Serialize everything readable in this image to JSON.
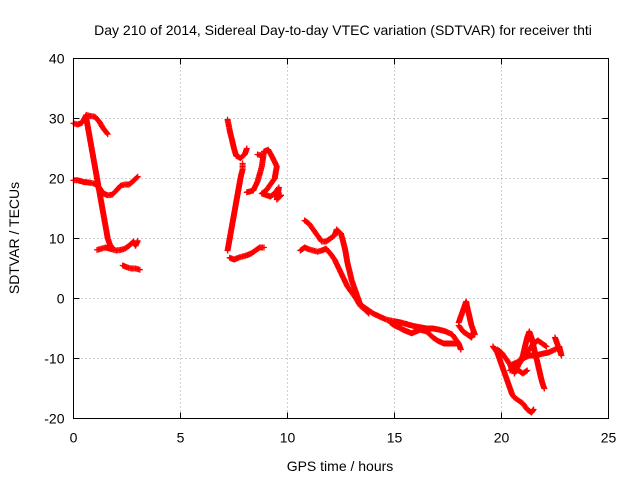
{
  "chart_data": {
    "type": "scatter",
    "title": "Day 210 of 2014, Sidereal Day-to-day VTEC variation (SDTVAR) for receiver thti",
    "xlabel": "GPS time / hours",
    "ylabel": "SDTVAR / TECUs",
    "xlim": [
      0,
      25
    ],
    "ylim": [
      -20,
      40
    ],
    "xticks": [
      "0",
      "5",
      "10",
      "15",
      "20",
      "25"
    ],
    "yticks": [
      "-20",
      "-10",
      "0",
      "10",
      "20",
      "30",
      "40"
    ],
    "grid": true,
    "marker": "+",
    "series_color": "#ff0000",
    "tracks": [
      [
        [
          0.0,
          29.2
        ],
        [
          0.2,
          29.0
        ],
        [
          0.4,
          29.3
        ],
        [
          0.6,
          30.6
        ],
        [
          0.8,
          30.4
        ],
        [
          1.0,
          30.3
        ],
        [
          1.2,
          29.5
        ],
        [
          1.4,
          28.3
        ],
        [
          1.6,
          27.4
        ]
      ],
      [
        [
          0.6,
          30.0
        ],
        [
          0.7,
          28.0
        ],
        [
          0.8,
          26.0
        ],
        [
          0.9,
          24.0
        ],
        [
          1.0,
          22.0
        ],
        [
          1.1,
          20.0
        ],
        [
          1.2,
          18.0
        ],
        [
          1.3,
          16.0
        ],
        [
          1.4,
          14.0
        ],
        [
          1.5,
          12.0
        ],
        [
          1.6,
          10.0
        ],
        [
          1.7,
          9.0
        ],
        [
          1.8,
          8.5
        ]
      ],
      [
        [
          0.0,
          19.7
        ],
        [
          0.2,
          19.7
        ],
        [
          0.5,
          19.4
        ],
        [
          0.8,
          19.3
        ],
        [
          1.0,
          19.1
        ],
        [
          1.2,
          18.5
        ],
        [
          1.4,
          17.5
        ],
        [
          1.6,
          17.2
        ],
        [
          1.8,
          17.3
        ],
        [
          2.0,
          18.0
        ],
        [
          2.2,
          18.8
        ],
        [
          2.4,
          19.0
        ],
        [
          2.6,
          19.0
        ],
        [
          2.8,
          19.6
        ],
        [
          3.0,
          20.3
        ]
      ],
      [
        [
          1.1,
          8.1
        ],
        [
          1.3,
          8.3
        ],
        [
          1.5,
          8.5
        ],
        [
          1.8,
          8.2
        ],
        [
          2.0,
          8.0
        ],
        [
          2.2,
          8.1
        ],
        [
          2.4,
          8.3
        ],
        [
          2.6,
          8.8
        ],
        [
          2.8,
          9.5
        ],
        [
          2.9,
          8.8
        ],
        [
          3.0,
          9.6
        ]
      ],
      [
        [
          2.3,
          5.5
        ],
        [
          2.5,
          5.2
        ],
        [
          2.7,
          5.0
        ],
        [
          2.9,
          5.0
        ],
        [
          3.1,
          4.8
        ]
      ],
      [
        [
          7.2,
          29.8
        ],
        [
          7.3,
          28.0
        ],
        [
          7.4,
          26.5
        ],
        [
          7.5,
          25.0
        ],
        [
          7.6,
          23.8
        ],
        [
          7.8,
          23.4
        ],
        [
          8.0,
          24.0
        ],
        [
          8.1,
          25.0
        ]
      ],
      [
        [
          7.2,
          8.0
        ],
        [
          7.3,
          10.0
        ],
        [
          7.4,
          12.0
        ],
        [
          7.5,
          14.0
        ],
        [
          7.6,
          16.0
        ],
        [
          7.7,
          18.0
        ],
        [
          7.8,
          20.0
        ],
        [
          7.9,
          21.5
        ],
        [
          7.9,
          22.5
        ]
      ],
      [
        [
          7.3,
          6.8
        ],
        [
          7.5,
          6.5
        ],
        [
          7.7,
          6.8
        ],
        [
          7.9,
          7.0
        ],
        [
          8.1,
          7.2
        ],
        [
          8.3,
          7.5
        ],
        [
          8.5,
          8.0
        ],
        [
          8.7,
          8.5
        ],
        [
          8.9,
          8.5
        ]
      ],
      [
        [
          8.1,
          17.7
        ],
        [
          8.4,
          18.0
        ],
        [
          8.6,
          19.5
        ],
        [
          8.8,
          22.0
        ],
        [
          8.9,
          24.5
        ],
        [
          9.1,
          24.8
        ],
        [
          9.3,
          23.5
        ],
        [
          9.5,
          22.0
        ],
        [
          9.4,
          20.0
        ],
        [
          9.2,
          19.0
        ],
        [
          9.0,
          18.0
        ],
        [
          8.8,
          17.5
        ],
        [
          9.2,
          17.0
        ],
        [
          9.4,
          17.5
        ],
        [
          9.6,
          18.5
        ],
        [
          9.5,
          16.5
        ],
        [
          9.7,
          17.2
        ]
      ],
      [
        [
          8.6,
          24.0
        ],
        [
          8.8,
          23.8
        ]
      ],
      [
        [
          10.8,
          13.0
        ],
        [
          11.0,
          12.5
        ],
        [
          11.2,
          11.5
        ],
        [
          11.4,
          10.5
        ],
        [
          11.6,
          9.5
        ],
        [
          11.8,
          9.5
        ],
        [
          12.0,
          10.0
        ],
        [
          12.2,
          10.5
        ],
        [
          12.3,
          11.5
        ],
        [
          12.5,
          10.8
        ],
        [
          12.6,
          9.5
        ],
        [
          12.7,
          8.0
        ],
        [
          12.8,
          6.0
        ],
        [
          12.9,
          4.5
        ],
        [
          13.0,
          3.0
        ],
        [
          13.1,
          2.0
        ],
        [
          13.2,
          1.0
        ],
        [
          13.3,
          0.0
        ],
        [
          13.4,
          -1.0
        ],
        [
          13.6,
          -1.5
        ],
        [
          13.8,
          -2.0
        ],
        [
          14.0,
          -2.5
        ],
        [
          14.3,
          -3.0
        ],
        [
          14.6,
          -3.5
        ],
        [
          15.0,
          -3.8
        ],
        [
          15.3,
          -4.0
        ],
        [
          15.6,
          -4.3
        ],
        [
          15.9,
          -4.6
        ],
        [
          16.2,
          -4.8
        ],
        [
          16.5,
          -5.0
        ],
        [
          16.8,
          -5.0
        ],
        [
          17.1,
          -5.2
        ],
        [
          17.4,
          -5.5
        ],
        [
          17.7,
          -6.0
        ],
        [
          17.9,
          -7.0
        ],
        [
          18.0,
          -7.5
        ],
        [
          18.1,
          -8.5
        ]
      ],
      [
        [
          10.6,
          8.0
        ],
        [
          10.8,
          8.5
        ],
        [
          11.0,
          8.2
        ],
        [
          11.2,
          8.0
        ],
        [
          11.4,
          7.8
        ],
        [
          11.6,
          8.0
        ],
        [
          11.8,
          8.3
        ],
        [
          12.0,
          7.5
        ],
        [
          12.2,
          6.5
        ],
        [
          12.4,
          5.0
        ],
        [
          12.6,
          3.5
        ],
        [
          12.8,
          2.0
        ],
        [
          13.0,
          1.0
        ],
        [
          13.2,
          0.0
        ],
        [
          13.4,
          -1.2
        ],
        [
          13.6,
          -1.8
        ],
        [
          13.8,
          -2.5
        ]
      ],
      [
        [
          14.8,
          -4.0
        ],
        [
          15.0,
          -4.5
        ],
        [
          15.2,
          -4.8
        ],
        [
          15.4,
          -5.2
        ],
        [
          15.6,
          -5.5
        ],
        [
          15.8,
          -5.8
        ],
        [
          16.0,
          -5.5
        ],
        [
          16.2,
          -5.2
        ],
        [
          16.5,
          -5.5
        ],
        [
          16.8,
          -6.5
        ],
        [
          17.0,
          -7.0
        ],
        [
          17.3,
          -7.5
        ],
        [
          17.6,
          -7.5
        ],
        [
          17.9,
          -7.5
        ]
      ],
      [
        [
          18.0,
          -4.0
        ],
        [
          18.1,
          -3.0
        ],
        [
          18.2,
          -2.0
        ],
        [
          18.3,
          -1.0
        ],
        [
          18.35,
          -0.5
        ],
        [
          18.4,
          -1.5
        ],
        [
          18.5,
          -3.0
        ],
        [
          18.6,
          -4.5
        ],
        [
          18.7,
          -5.5
        ],
        [
          18.75,
          -6.0
        ]
      ],
      [
        [
          18.0,
          -4.5
        ],
        [
          18.2,
          -5.5
        ],
        [
          18.4,
          -6.0
        ],
        [
          18.6,
          -6.5
        ],
        [
          18.7,
          -5.5
        ]
      ],
      [
        [
          19.6,
          -8.0
        ],
        [
          19.8,
          -9.0
        ],
        [
          19.9,
          -10.0
        ],
        [
          20.0,
          -11.0
        ],
        [
          20.1,
          -12.0
        ],
        [
          20.2,
          -13.0
        ],
        [
          20.3,
          -14.0
        ],
        [
          20.4,
          -15.0
        ],
        [
          20.5,
          -16.0
        ],
        [
          20.6,
          -16.5
        ],
        [
          20.8,
          -17.0
        ],
        [
          21.0,
          -17.5
        ],
        [
          21.2,
          -18.5
        ],
        [
          21.4,
          -19.0
        ],
        [
          21.5,
          -18.5
        ]
      ],
      [
        [
          19.8,
          -8.5
        ],
        [
          20.0,
          -9.0
        ],
        [
          20.2,
          -10.0
        ],
        [
          20.4,
          -11.0
        ],
        [
          20.5,
          -12.0
        ],
        [
          20.7,
          -11.5
        ],
        [
          20.9,
          -10.5
        ],
        [
          21.1,
          -9.5
        ],
        [
          21.3,
          -8.5
        ],
        [
          21.5,
          -7.5
        ],
        [
          21.7,
          -7.0
        ],
        [
          21.9,
          -7.5
        ],
        [
          22.1,
          -8.0
        ]
      ],
      [
        [
          20.6,
          -12.5
        ],
        [
          20.8,
          -11.0
        ],
        [
          21.0,
          -9.5
        ],
        [
          21.1,
          -8.0
        ],
        [
          21.2,
          -6.5
        ],
        [
          21.3,
          -5.5
        ],
        [
          21.4,
          -6.5
        ],
        [
          21.5,
          -8.0
        ],
        [
          21.6,
          -9.5
        ],
        [
          21.7,
          -11.0
        ],
        [
          21.8,
          -12.5
        ],
        [
          21.9,
          -14.0
        ],
        [
          22.0,
          -15.0
        ]
      ],
      [
        [
          20.5,
          -11.0
        ],
        [
          20.8,
          -10.5
        ],
        [
          21.0,
          -10.0
        ],
        [
          21.3,
          -9.5
        ],
        [
          21.6,
          -9.5
        ],
        [
          21.9,
          -9.2
        ],
        [
          22.2,
          -9.0
        ],
        [
          22.5,
          -8.5
        ],
        [
          22.7,
          -8.0
        ],
        [
          22.8,
          -9.5
        ],
        [
          22.6,
          -7.5
        ],
        [
          22.5,
          -6.5
        ]
      ],
      [
        [
          20.4,
          -12.0
        ],
        [
          20.6,
          -11.5
        ],
        [
          20.8,
          -12.0
        ],
        [
          21.0,
          -12.5
        ],
        [
          21.2,
          -12.0
        ]
      ]
    ]
  }
}
